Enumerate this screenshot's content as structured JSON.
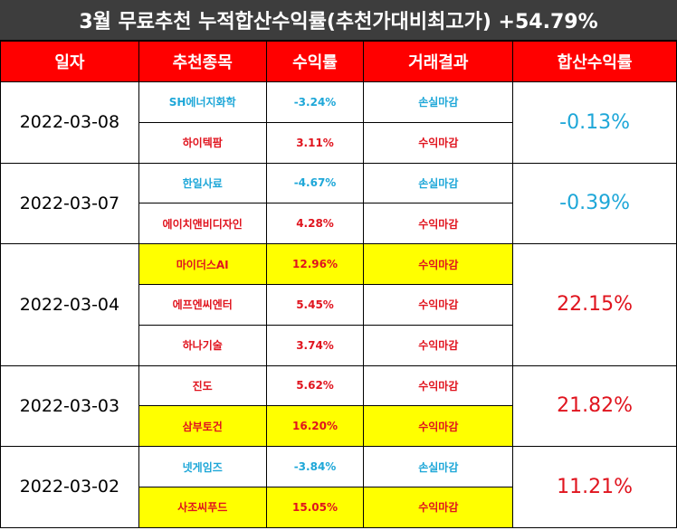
{
  "title": "3월 무료추천 누적합산수익률(추천가대비최고가) +54.79%",
  "headers": [
    "일자",
    "추천종목",
    "수익률",
    "거래결과",
    "합산수익률"
  ],
  "rows": [
    {
      "date": "2022-03-08",
      "cum": "-0.13%",
      "cum_color": "blue",
      "stocks": [
        {
          "name": "SH에너지화학",
          "ret": "-3.24%",
          "result": "손실마감",
          "color": "blue",
          "highlight": false
        },
        {
          "name": "하이텍팜",
          "ret": "3.11%",
          "result": "수익마감",
          "color": "red",
          "highlight": false
        }
      ]
    },
    {
      "date": "2022-03-07",
      "cum": "-0.39%",
      "cum_color": "blue",
      "stocks": [
        {
          "name": "한일사료",
          "ret": "-4.67%",
          "result": "손실마감",
          "color": "blue",
          "highlight": false
        },
        {
          "name": "에이치앤비디자인",
          "ret": "4.28%",
          "result": "수익마감",
          "color": "red",
          "highlight": false
        }
      ]
    },
    {
      "date": "2022-03-04",
      "cum": "22.15%",
      "cum_color": "red",
      "stocks": [
        {
          "name": "마이더스AI",
          "ret": "12.96%",
          "result": "수익마감",
          "color": "red",
          "highlight": true
        },
        {
          "name": "에프엔씨엔터",
          "ret": "5.45%",
          "result": "수익마감",
          "color": "red",
          "highlight": false
        },
        {
          "name": "하나기술",
          "ret": "3.74%",
          "result": "수익마감",
          "color": "red",
          "highlight": false
        }
      ]
    },
    {
      "date": "2022-03-03",
      "cum": "21.82%",
      "cum_color": "red",
      "stocks": [
        {
          "name": "진도",
          "ret": "5.62%",
          "result": "수익마감",
          "color": "red",
          "highlight": false
        },
        {
          "name": "삼부토건",
          "ret": "16.20%",
          "result": "수익마감",
          "color": "red",
          "highlight": true
        }
      ]
    },
    {
      "date": "2022-03-02",
      "cum": "11.21%",
      "cum_color": "red",
      "stocks": [
        {
          "name": "넷게임즈",
          "ret": "-3.84%",
          "result": "손실마감",
          "color": "blue",
          "highlight": false
        },
        {
          "name": "사조씨푸드",
          "ret": "15.05%",
          "result": "수익마감",
          "color": "red",
          "highlight": true
        }
      ]
    }
  ]
}
